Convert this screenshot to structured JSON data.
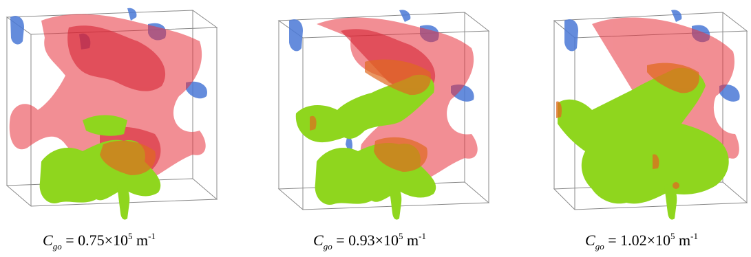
{
  "panels": [
    {
      "caption": {
        "symbol": "C",
        "subscript": "go",
        "operator": "=",
        "mantissa": "0.75",
        "times": "×10",
        "exponent": "5",
        "unit": "m",
        "unit_exponent": "-1"
      },
      "colors": {
        "red_phase": "#e8323c",
        "green_phase": "#8fd61e",
        "blue_phase": "#4a78d6"
      }
    },
    {
      "caption": {
        "symbol": "C",
        "subscript": "go",
        "operator": "=",
        "mantissa": "0.93",
        "times": "×10",
        "exponent": "5",
        "unit": "m",
        "unit_exponent": "-1"
      },
      "colors": {
        "red_phase": "#e8323c",
        "green_phase": "#8fd61e",
        "blue_phase": "#4a78d6"
      }
    },
    {
      "caption": {
        "symbol": "C",
        "subscript": "go",
        "operator": "=",
        "mantissa": "1.02",
        "times": "×10",
        "exponent": "5",
        "unit": "m",
        "unit_exponent": "-1"
      },
      "colors": {
        "red_phase": "#e8323c",
        "green_phase": "#8fd61e",
        "blue_phase": "#4a78d6"
      }
    }
  ]
}
